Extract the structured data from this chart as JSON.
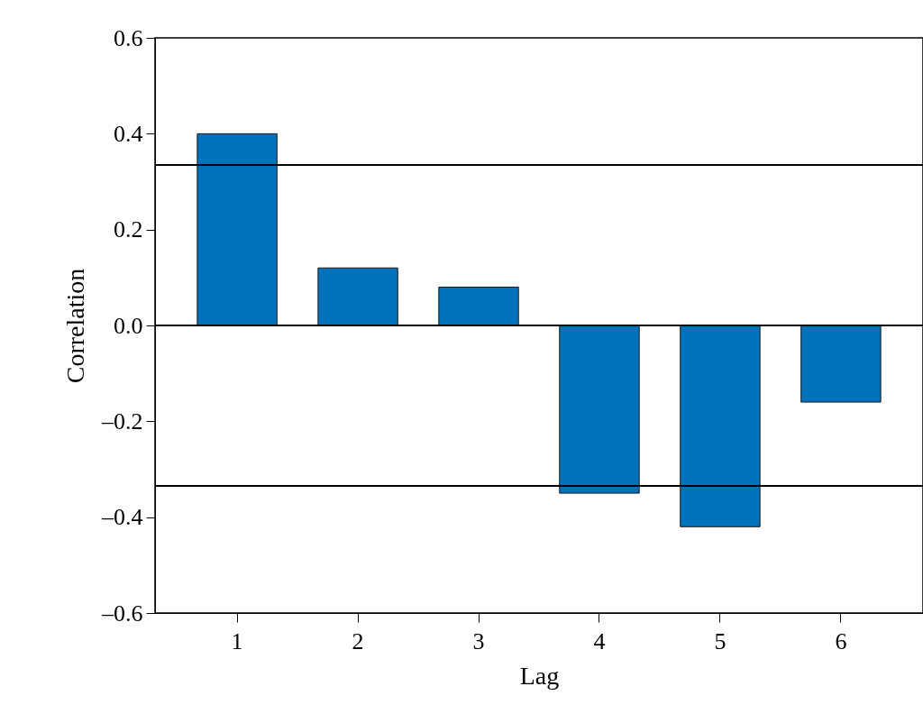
{
  "chart_data": {
    "type": "bar",
    "xlabel": "Lag",
    "ylabel": "Correlation",
    "categories": [
      "1",
      "2",
      "3",
      "4",
      "5",
      "6"
    ],
    "values": [
      0.4,
      0.12,
      0.08,
      -0.35,
      -0.42,
      -0.16
    ],
    "color": "#0072bc",
    "ylim": [
      -0.6,
      0.6
    ],
    "yticks": [
      {
        "value": -0.6,
        "label": "–0.6"
      },
      {
        "value": -0.4,
        "label": "–0.4"
      },
      {
        "value": -0.2,
        "label": "–0.2"
      },
      {
        "value": 0,
        "label": "0.0"
      },
      {
        "value": 0.2,
        "label": "0.2"
      },
      {
        "value": 0.4,
        "label": "0.4"
      },
      {
        "value": 0.6,
        "label": "0.6"
      }
    ],
    "ref_lines": [
      {
        "axis": "y",
        "value": 0.335,
        "color": "#000000"
      },
      {
        "axis": "y",
        "value": 0,
        "color": "#000000"
      },
      {
        "axis": "y",
        "value": -0.335,
        "color": "#000000"
      }
    ],
    "grid": false
  }
}
